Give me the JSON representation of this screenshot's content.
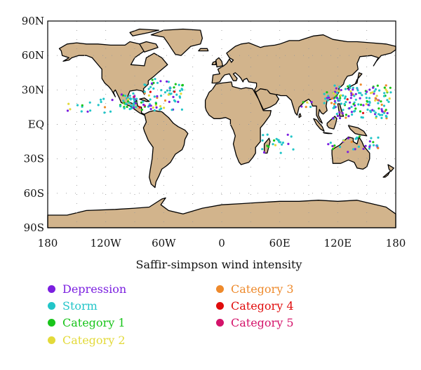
{
  "xlabel": "Saffir-simpson wind intensity",
  "lat_ticks": [
    "90N",
    "60N",
    "30N",
    "EQ",
    "30S",
    "60S",
    "90S"
  ],
  "lon_ticks": [
    "180",
    "120W",
    "60W",
    "0",
    "60E",
    "120E",
    "180"
  ],
  "colors": {
    "land": "#d2b48c",
    "coast": "#000000",
    "grid": "#999999"
  },
  "legend": [
    {
      "label": "Depression",
      "color": "#7b1fe0"
    },
    {
      "label": "Storm",
      "color": "#22c5c8"
    },
    {
      "label": "Category 1",
      "color": "#19c51b"
    },
    {
      "label": "Category 2",
      "color": "#e3da3a"
    },
    {
      "label": "Category 3",
      "color": "#ee8a2c"
    },
    {
      "label": "Category 4",
      "color": "#e00c0c"
    },
    {
      "label": "Category 5",
      "color": "#d4136a"
    }
  ]
}
